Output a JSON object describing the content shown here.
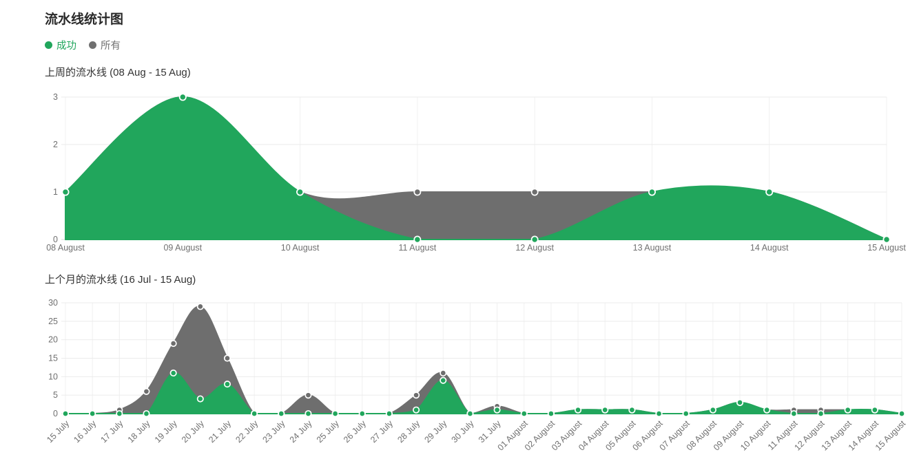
{
  "page": {
    "title": "流水线统计图"
  },
  "legend": {
    "items": [
      {
        "key": "success",
        "label": "成功",
        "color": "#21a65c"
      },
      {
        "key": "all",
        "label": "所有",
        "color": "#707070"
      }
    ]
  },
  "chart_data": [
    {
      "type": "area",
      "title": "上周的流水线 (08 Aug - 15 Aug)",
      "categories": [
        "08 August",
        "09 August",
        "10 August",
        "11 August",
        "12 August",
        "13 August",
        "14 August",
        "15 August"
      ],
      "series": [
        {
          "key": "success",
          "name": "成功",
          "color": "#21a65c",
          "values": [
            1,
            3,
            1,
            0,
            0,
            1,
            1,
            0
          ]
        },
        {
          "key": "all",
          "name": "所有",
          "color": "#6e6e6e",
          "values": [
            1,
            3,
            1,
            1,
            1,
            1,
            1,
            0
          ]
        }
      ],
      "ylim": [
        0,
        3
      ],
      "yticks": [
        0,
        1,
        2,
        3
      ],
      "grid": true,
      "x_label_rotation": 0,
      "legend_position": "top"
    },
    {
      "type": "area",
      "title": "上个月的流水线 (16 Jul - 15 Aug)",
      "categories": [
        "15 July",
        "16 July",
        "17 July",
        "18 July",
        "19 July",
        "20 July",
        "21 July",
        "22 July",
        "23 July",
        "24 July",
        "25 July",
        "26 July",
        "27 July",
        "28 July",
        "29 July",
        "30 July",
        "31 July",
        "01 August",
        "02 August",
        "03 August",
        "04 August",
        "05 August",
        "06 August",
        "07 August",
        "08 August",
        "09 August",
        "10 August",
        "11 August",
        "12 August",
        "13 August",
        "14 August",
        "15 August"
      ],
      "series": [
        {
          "key": "success",
          "name": "成功",
          "color": "#21a65c",
          "values": [
            0,
            0,
            0,
            0,
            11,
            4,
            8,
            0,
            0,
            0,
            0,
            0,
            0,
            1,
            9,
            0,
            1,
            0,
            0,
            1,
            1,
            1,
            0,
            0,
            1,
            3,
            1,
            0,
            0,
            1,
            1,
            0
          ]
        },
        {
          "key": "all",
          "name": "所有",
          "color": "#6e6e6e",
          "values": [
            0,
            0,
            1,
            6,
            19,
            29,
            15,
            0,
            0,
            5,
            0,
            0,
            0,
            5,
            11,
            0,
            2,
            0,
            0,
            1,
            1,
            1,
            0,
            0,
            1,
            3,
            1,
            1,
            1,
            1,
            1,
            0
          ]
        }
      ],
      "ylim": [
        0,
        30
      ],
      "yticks": [
        0,
        5,
        10,
        15,
        20,
        25,
        30
      ],
      "grid": true,
      "x_label_rotation": -45,
      "legend_position": "top"
    }
  ]
}
